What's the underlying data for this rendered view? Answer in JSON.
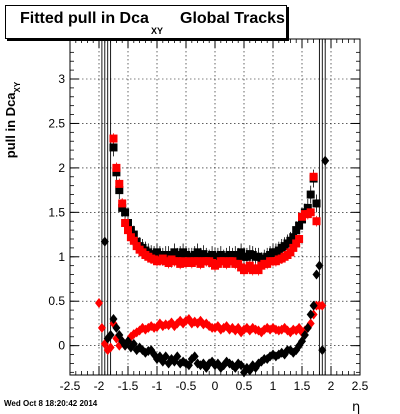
{
  "header": {
    "title_main": "Fitted pull in Dca",
    "title_sub": "XY",
    "title_rest": "Global Tracks"
  },
  "footer": {
    "timestamp": "Wed Oct  8 18:20:42 2014"
  },
  "chart_data": {
    "type": "scatter",
    "title": "Fitted pull in Dca XY Global Tracks",
    "xlabel": "η",
    "ylabel": "pull in Dca",
    "ylabel_sub": "XY",
    "xlim": [
      -2.5,
      2.5
    ],
    "ylim": [
      -0.33,
      3.45
    ],
    "grid": true,
    "x_ticks": [
      "-2.5",
      "-2",
      "-1.5",
      "-1",
      "-0.5",
      "0",
      "0.5",
      "1",
      "1.5",
      "2",
      "2.5"
    ],
    "y_ticks": [
      "0",
      "0.5",
      "1",
      "1.5",
      "2",
      "2.5",
      "3"
    ],
    "series": [
      {
        "marker": "square",
        "color": "#000000",
        "group": "black-upper",
        "x": [
          -1.75,
          -1.7,
          -1.65,
          -1.6,
          -1.55,
          -1.5,
          -1.45,
          -1.4,
          -1.35,
          -1.3,
          -1.25,
          -1.2,
          -1.15,
          -1.1,
          -1.05,
          -1.0,
          -0.95,
          -0.9,
          -0.85,
          -0.8,
          -0.75,
          -0.7,
          -0.65,
          -0.6,
          -0.55,
          -0.5,
          -0.45,
          -0.4,
          -0.35,
          -0.3,
          -0.25,
          -0.2,
          -0.15,
          -0.1,
          -0.05,
          0.0,
          0.05,
          0.1,
          0.15,
          0.2,
          0.25,
          0.3,
          0.35,
          0.4,
          0.45,
          0.5,
          0.55,
          0.6,
          0.65,
          0.7,
          0.75,
          0.8,
          0.85,
          0.9,
          0.95,
          1.0,
          1.05,
          1.1,
          1.15,
          1.2,
          1.25,
          1.3,
          1.35,
          1.4,
          1.45,
          1.5,
          1.55,
          1.6,
          1.65,
          1.7,
          1.75
        ],
        "y": [
          2.23,
          1.95,
          1.75,
          1.55,
          1.5,
          1.38,
          1.3,
          1.25,
          1.17,
          1.12,
          1.1,
          1.07,
          1.05,
          1.03,
          1.02,
          1.05,
          1.02,
          1.0,
          1.02,
          1.02,
          0.98,
          1.05,
          1.0,
          1.02,
          1.05,
          1.02,
          1.0,
          1.0,
          1.02,
          1.05,
          1.0,
          1.03,
          1.0,
          0.98,
          1.02,
          1.0,
          1.0,
          1.02,
          0.98,
          1.0,
          1.02,
          1.0,
          1.02,
          1.0,
          1.05,
          1.0,
          1.0,
          1.03,
          1.02,
          1.0,
          1.0,
          0.95,
          0.98,
          1.0,
          1.02,
          1.05,
          1.05,
          1.07,
          1.1,
          1.12,
          1.15,
          1.18,
          1.22,
          1.3,
          1.35,
          1.42,
          1.5,
          1.55,
          1.7,
          1.88,
          1.6
        ],
        "yerr": 0.1
      },
      {
        "marker": "square",
        "color": "#ff0000",
        "group": "red-upper",
        "x": [
          -1.75,
          -1.7,
          -1.65,
          -1.6,
          -1.55,
          -1.5,
          -1.45,
          -1.4,
          -1.35,
          -1.3,
          -1.25,
          -1.2,
          -1.15,
          -1.1,
          -1.05,
          -1.0,
          -0.95,
          -0.9,
          -0.85,
          -0.8,
          -0.75,
          -0.7,
          -0.65,
          -0.6,
          -0.55,
          -0.5,
          -0.45,
          -0.4,
          -0.35,
          -0.3,
          -0.25,
          -0.2,
          -0.15,
          -0.1,
          -0.05,
          0.0,
          0.05,
          0.1,
          0.15,
          0.2,
          0.25,
          0.3,
          0.35,
          0.4,
          0.45,
          0.5,
          0.55,
          0.6,
          0.65,
          0.7,
          0.75,
          0.8,
          0.85,
          0.9,
          0.95,
          1.0,
          1.05,
          1.1,
          1.15,
          1.2,
          1.25,
          1.3,
          1.35,
          1.4,
          1.45,
          1.5,
          1.55,
          1.6,
          1.65,
          1.7,
          1.75
        ],
        "y": [
          2.33,
          2.0,
          1.82,
          1.6,
          1.38,
          1.3,
          1.22,
          1.18,
          1.12,
          1.08,
          1.05,
          1.02,
          1.0,
          0.98,
          0.97,
          0.95,
          0.96,
          0.98,
          0.95,
          0.93,
          0.97,
          0.95,
          0.95,
          0.92,
          0.95,
          0.93,
          0.95,
          0.93,
          0.95,
          0.95,
          0.92,
          0.95,
          0.95,
          0.95,
          0.93,
          0.9,
          0.92,
          0.95,
          0.95,
          0.92,
          0.95,
          0.95,
          0.92,
          0.92,
          0.88,
          0.85,
          0.87,
          0.9,
          0.85,
          0.87,
          0.85,
          0.9,
          0.92,
          0.92,
          0.95,
          0.95,
          0.95,
          0.97,
          0.98,
          1.0,
          1.02,
          1.05,
          1.1,
          1.15,
          1.2,
          1.45,
          1.48,
          1.48,
          1.5,
          1.9,
          1.4
        ],
        "yerr": 0.06
      },
      {
        "marker": "diamond",
        "color": "#ff0000",
        "group": "red-lower",
        "x": [
          -2.0,
          -1.95,
          -1.9,
          -1.85,
          -1.8,
          -1.75,
          -1.7,
          -1.65,
          -1.6,
          -1.55,
          -1.5,
          -1.45,
          -1.4,
          -1.35,
          -1.3,
          -1.25,
          -1.2,
          -1.15,
          -1.1,
          -1.05,
          -1.0,
          -0.95,
          -0.9,
          -0.85,
          -0.8,
          -0.75,
          -0.7,
          -0.65,
          -0.6,
          -0.55,
          -0.5,
          -0.45,
          -0.4,
          -0.35,
          -0.3,
          -0.25,
          -0.2,
          -0.15,
          -0.1,
          -0.05,
          0.0,
          0.05,
          0.1,
          0.15,
          0.2,
          0.25,
          0.3,
          0.35,
          0.4,
          0.45,
          0.5,
          0.55,
          0.6,
          0.65,
          0.7,
          0.75,
          0.8,
          0.85,
          0.9,
          0.95,
          1.0,
          1.05,
          1.1,
          1.15,
          1.2,
          1.25,
          1.3,
          1.35,
          1.4,
          1.45,
          1.5,
          1.55,
          1.6,
          1.65,
          1.7,
          1.75,
          1.8,
          1.85
        ],
        "y": [
          0.48,
          0.2,
          0.02,
          -0.05,
          -0.02,
          0.25,
          0.08,
          0.0,
          0.05,
          0.0,
          0.05,
          0.1,
          0.13,
          0.15,
          0.17,
          0.2,
          0.18,
          0.2,
          0.22,
          0.2,
          0.21,
          0.25,
          0.22,
          0.24,
          0.23,
          0.26,
          0.22,
          0.25,
          0.28,
          0.25,
          0.28,
          0.3,
          0.25,
          0.27,
          0.25,
          0.28,
          0.24,
          0.25,
          0.22,
          0.2,
          0.2,
          0.22,
          0.18,
          0.2,
          0.22,
          0.18,
          0.2,
          0.17,
          0.2,
          0.15,
          0.18,
          0.2,
          0.17,
          0.2,
          0.18,
          0.17,
          0.15,
          0.18,
          0.2,
          0.18,
          0.2,
          0.18,
          0.17,
          0.18,
          0.2,
          0.17,
          0.15,
          0.18,
          0.17,
          0.2,
          0.15,
          0.17,
          0.2,
          0.25,
          0.35,
          0.45,
          0.45,
          0.45
        ],
        "yerr": 0.03
      },
      {
        "marker": "diamond",
        "color": "#000000",
        "group": "black-lower",
        "x": [
          -1.9,
          -1.85,
          -1.8,
          -1.75,
          -1.7,
          -1.65,
          -1.6,
          -1.55,
          -1.5,
          -1.45,
          -1.4,
          -1.35,
          -1.3,
          -1.25,
          -1.2,
          -1.15,
          -1.1,
          -1.05,
          -1.0,
          -0.95,
          -0.9,
          -0.85,
          -0.8,
          -0.75,
          -0.7,
          -0.65,
          -0.6,
          -0.55,
          -0.5,
          -0.45,
          -0.4,
          -0.35,
          -0.3,
          -0.25,
          -0.2,
          -0.15,
          -0.1,
          -0.05,
          0.0,
          0.05,
          0.1,
          0.15,
          0.2,
          0.25,
          0.3,
          0.35,
          0.4,
          0.45,
          0.5,
          0.55,
          0.6,
          0.65,
          0.7,
          0.75,
          0.8,
          0.85,
          0.9,
          0.95,
          1.0,
          1.05,
          1.1,
          1.15,
          1.2,
          1.25,
          1.3,
          1.35,
          1.4,
          1.45,
          1.5,
          1.55,
          1.6,
          1.65,
          1.7,
          1.75,
          1.8,
          1.85,
          1.9
        ],
        "y": [
          1.17,
          0.08,
          0.12,
          0.3,
          0.2,
          0.12,
          0.05,
          0.0,
          0.05,
          -0.02,
          0.02,
          -0.05,
          -0.02,
          -0.05,
          -0.08,
          -0.06,
          -0.05,
          -0.1,
          -0.15,
          -0.12,
          -0.18,
          -0.12,
          -0.2,
          -0.15,
          -0.18,
          -0.12,
          -0.2,
          -0.18,
          -0.2,
          -0.22,
          -0.15,
          -0.12,
          -0.2,
          -0.22,
          -0.2,
          -0.25,
          -0.2,
          -0.18,
          -0.22,
          -0.2,
          -0.25,
          -0.22,
          -0.18,
          -0.2,
          -0.22,
          -0.25,
          -0.2,
          -0.22,
          -0.3,
          -0.25,
          -0.28,
          -0.22,
          -0.25,
          -0.2,
          -0.18,
          -0.15,
          -0.15,
          -0.12,
          -0.1,
          -0.12,
          -0.1,
          -0.08,
          -0.1,
          -0.05,
          -0.05,
          -0.08,
          -0.05,
          0.0,
          0.05,
          0.12,
          0.2,
          0.35,
          0.45,
          0.8,
          0.9,
          -0.05,
          2.08
        ],
        "yerr": 0.03
      }
    ]
  }
}
